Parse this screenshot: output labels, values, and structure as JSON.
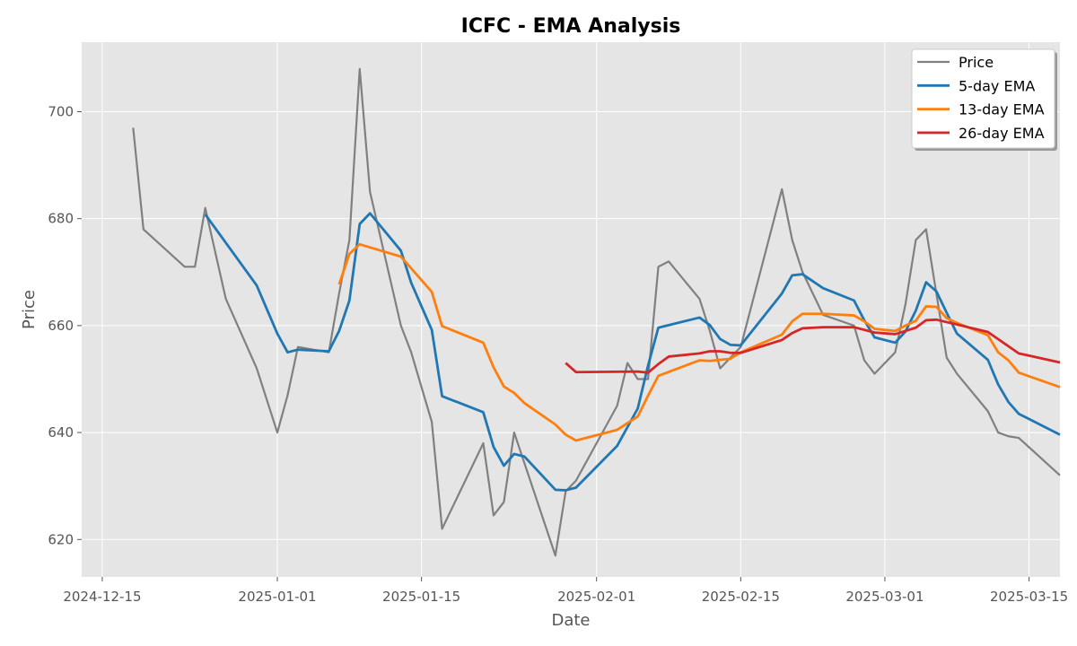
{
  "chart_data": {
    "type": "line",
    "title": "ICFC - EMA Analysis",
    "xlabel": "Date",
    "ylabel": "Price",
    "xlim": [
      "2024-12-13",
      "2025-03-18"
    ],
    "ylim": [
      613,
      713
    ],
    "x_ticks": [
      "2024-12-15",
      "2025-01-01",
      "2025-01-15",
      "2025-02-01",
      "2025-02-15",
      "2025-03-01",
      "2025-03-15"
    ],
    "y_ticks": [
      620,
      640,
      660,
      680,
      700
    ],
    "grid": true,
    "legend_position": "top-right",
    "series": [
      {
        "name": "Price",
        "color": "#808080",
        "points": [
          [
            "2024-12-18",
            697
          ],
          [
            "2024-12-19",
            678
          ],
          [
            "2024-12-23",
            671
          ],
          [
            "2024-12-24",
            671
          ],
          [
            "2024-12-25",
            682
          ],
          [
            "2024-12-27",
            665
          ],
          [
            "2024-12-30",
            652
          ],
          [
            "2025-01-01",
            640
          ],
          [
            "2025-01-02",
            647
          ],
          [
            "2025-01-03",
            656
          ],
          [
            "2025-01-06",
            655
          ],
          [
            "2025-01-07",
            666
          ],
          [
            "2025-01-08",
            676
          ],
          [
            "2025-01-09",
            708
          ],
          [
            "2025-01-10",
            685
          ],
          [
            "2025-01-13",
            660
          ],
          [
            "2025-01-14",
            655
          ],
          [
            "2025-01-16",
            642
          ],
          [
            "2025-01-17",
            622
          ],
          [
            "2025-01-21",
            638
          ],
          [
            "2025-01-22",
            624.5
          ],
          [
            "2025-01-23",
            627
          ],
          [
            "2025-01-24",
            640
          ],
          [
            "2025-01-28",
            617
          ],
          [
            "2025-01-29",
            629
          ],
          [
            "2025-01-30",
            631
          ],
          [
            "2025-02-03",
            645
          ],
          [
            "2025-02-04",
            653
          ],
          [
            "2025-02-05",
            650
          ],
          [
            "2025-02-06",
            650
          ],
          [
            "2025-02-07",
            671
          ],
          [
            "2025-02-08",
            672
          ],
          [
            "2025-02-11",
            665
          ],
          [
            "2025-02-12",
            659
          ],
          [
            "2025-02-13",
            652
          ],
          [
            "2025-02-15",
            656
          ],
          [
            "2025-02-19",
            685.5
          ],
          [
            "2025-02-20",
            676
          ],
          [
            "2025-02-21",
            670
          ],
          [
            "2025-02-23",
            662
          ],
          [
            "2025-02-26",
            660
          ],
          [
            "2025-02-27",
            653.5
          ],
          [
            "2025-02-28",
            651
          ],
          [
            "2025-03-02",
            655
          ],
          [
            "2025-03-03",
            664
          ],
          [
            "2025-03-04",
            676
          ],
          [
            "2025-03-05",
            678
          ],
          [
            "2025-03-06",
            666
          ],
          [
            "2025-03-07",
            654
          ],
          [
            "2025-03-08",
            651
          ],
          [
            "2025-03-11",
            644
          ],
          [
            "2025-03-12",
            640
          ],
          [
            "2025-03-13",
            639.3
          ],
          [
            "2025-03-14",
            639
          ],
          [
            "2025-03-18",
            632
          ]
        ]
      },
      {
        "name": "5-day EMA",
        "color": "#1f77b4",
        "points": [
          [
            "2024-12-25",
            680.8
          ],
          [
            "2024-12-30",
            667.5
          ],
          [
            "2025-01-01",
            658.5
          ],
          [
            "2025-01-02",
            655
          ],
          [
            "2025-01-03",
            655.5
          ],
          [
            "2025-01-06",
            655.2
          ],
          [
            "2025-01-07",
            659
          ],
          [
            "2025-01-08",
            664.7
          ],
          [
            "2025-01-09",
            679
          ],
          [
            "2025-01-10",
            681
          ],
          [
            "2025-01-13",
            674
          ],
          [
            "2025-01-14",
            668
          ],
          [
            "2025-01-16",
            659.2
          ],
          [
            "2025-01-17",
            646.8
          ],
          [
            "2025-01-21",
            643.8
          ],
          [
            "2025-01-22",
            637.3
          ],
          [
            "2025-01-23",
            633.8
          ],
          [
            "2025-01-24",
            636
          ],
          [
            "2025-01-25",
            635.5
          ],
          [
            "2025-01-28",
            629.3
          ],
          [
            "2025-01-29",
            629.2
          ],
          [
            "2025-01-30",
            629.7
          ],
          [
            "2025-02-03",
            637.5
          ],
          [
            "2025-02-05",
            644.5
          ],
          [
            "2025-02-06",
            652.5
          ],
          [
            "2025-02-07",
            659.6
          ],
          [
            "2025-02-11",
            661.5
          ],
          [
            "2025-02-12",
            660.1
          ],
          [
            "2025-02-13",
            657.5
          ],
          [
            "2025-02-14",
            656.4
          ],
          [
            "2025-02-15",
            656.3
          ],
          [
            "2025-02-19",
            666
          ],
          [
            "2025-02-20",
            669.4
          ],
          [
            "2025-02-21",
            669.6
          ],
          [
            "2025-02-23",
            667
          ],
          [
            "2025-02-26",
            664.7
          ],
          [
            "2025-02-27",
            661
          ],
          [
            "2025-02-28",
            657.8
          ],
          [
            "2025-03-02",
            656.8
          ],
          [
            "2025-03-03",
            658.9
          ],
          [
            "2025-03-04",
            662.8
          ],
          [
            "2025-03-05",
            668.1
          ],
          [
            "2025-03-06",
            666.4
          ],
          [
            "2025-03-07",
            662.4
          ],
          [
            "2025-03-08",
            658.5
          ],
          [
            "2025-03-11",
            653.6
          ],
          [
            "2025-03-12",
            649
          ],
          [
            "2025-03-13",
            645.7
          ],
          [
            "2025-03-14",
            643.5
          ],
          [
            "2025-03-18",
            639.6
          ]
        ]
      },
      {
        "name": "13-day EMA",
        "color": "#ff7f0e",
        "points": [
          [
            "2025-01-07",
            667.7
          ],
          [
            "2025-01-08",
            673.4
          ],
          [
            "2025-01-09",
            675.2
          ],
          [
            "2025-01-13",
            672.9
          ],
          [
            "2025-01-16",
            666.3
          ],
          [
            "2025-01-17",
            659.9
          ],
          [
            "2025-01-21",
            656.8
          ],
          [
            "2025-01-22",
            652.2
          ],
          [
            "2025-01-23",
            648.6
          ],
          [
            "2025-01-24",
            647.4
          ],
          [
            "2025-01-25",
            645.5
          ],
          [
            "2025-01-28",
            641.5
          ],
          [
            "2025-01-29",
            639.6
          ],
          [
            "2025-01-30",
            638.5
          ],
          [
            "2025-02-03",
            640.5
          ],
          [
            "2025-02-05",
            643
          ],
          [
            "2025-02-06",
            646.9
          ],
          [
            "2025-02-07",
            650.6
          ],
          [
            "2025-02-11",
            653.5
          ],
          [
            "2025-02-12",
            653.4
          ],
          [
            "2025-02-14",
            653.8
          ],
          [
            "2025-02-15",
            655
          ],
          [
            "2025-02-19",
            658.3
          ],
          [
            "2025-02-20",
            660.8
          ],
          [
            "2025-02-21",
            662.2
          ],
          [
            "2025-02-23",
            662.2
          ],
          [
            "2025-02-26",
            661.9
          ],
          [
            "2025-02-27",
            660.8
          ],
          [
            "2025-02-28",
            659.4
          ],
          [
            "2025-03-02",
            659
          ],
          [
            "2025-03-03",
            660
          ],
          [
            "2025-03-04",
            660.9
          ],
          [
            "2025-03-05",
            663.6
          ],
          [
            "2025-03-06",
            663.5
          ],
          [
            "2025-03-07",
            661.4
          ],
          [
            "2025-03-08",
            660.5
          ],
          [
            "2025-03-11",
            658.2
          ],
          [
            "2025-03-12",
            655
          ],
          [
            "2025-03-13",
            653.5
          ],
          [
            "2025-03-14",
            651.2
          ],
          [
            "2025-03-18",
            648.5
          ]
        ]
      },
      {
        "name": "26-day EMA",
        "color": "#d62728",
        "points": [
          [
            "2025-01-29",
            653
          ],
          [
            "2025-01-30",
            651.3
          ],
          [
            "2025-02-05",
            651.4
          ],
          [
            "2025-02-06",
            651.2
          ],
          [
            "2025-02-07",
            652.8
          ],
          [
            "2025-02-08",
            654.2
          ],
          [
            "2025-02-11",
            654.8
          ],
          [
            "2025-02-12",
            655.2
          ],
          [
            "2025-02-13",
            655.2
          ],
          [
            "2025-02-14",
            654.9
          ],
          [
            "2025-02-15",
            654.9
          ],
          [
            "2025-02-19",
            657.3
          ],
          [
            "2025-02-20",
            658.6
          ],
          [
            "2025-02-21",
            659.5
          ],
          [
            "2025-02-23",
            659.7
          ],
          [
            "2025-02-26",
            659.7
          ],
          [
            "2025-02-28",
            658.7
          ],
          [
            "2025-03-02",
            658.4
          ],
          [
            "2025-03-04",
            659.6
          ],
          [
            "2025-03-05",
            661
          ],
          [
            "2025-03-06",
            661.1
          ],
          [
            "2025-03-08",
            660.2
          ],
          [
            "2025-03-11",
            658.8
          ],
          [
            "2025-03-14",
            654.8
          ],
          [
            "2025-03-18",
            653.1
          ]
        ]
      }
    ]
  }
}
